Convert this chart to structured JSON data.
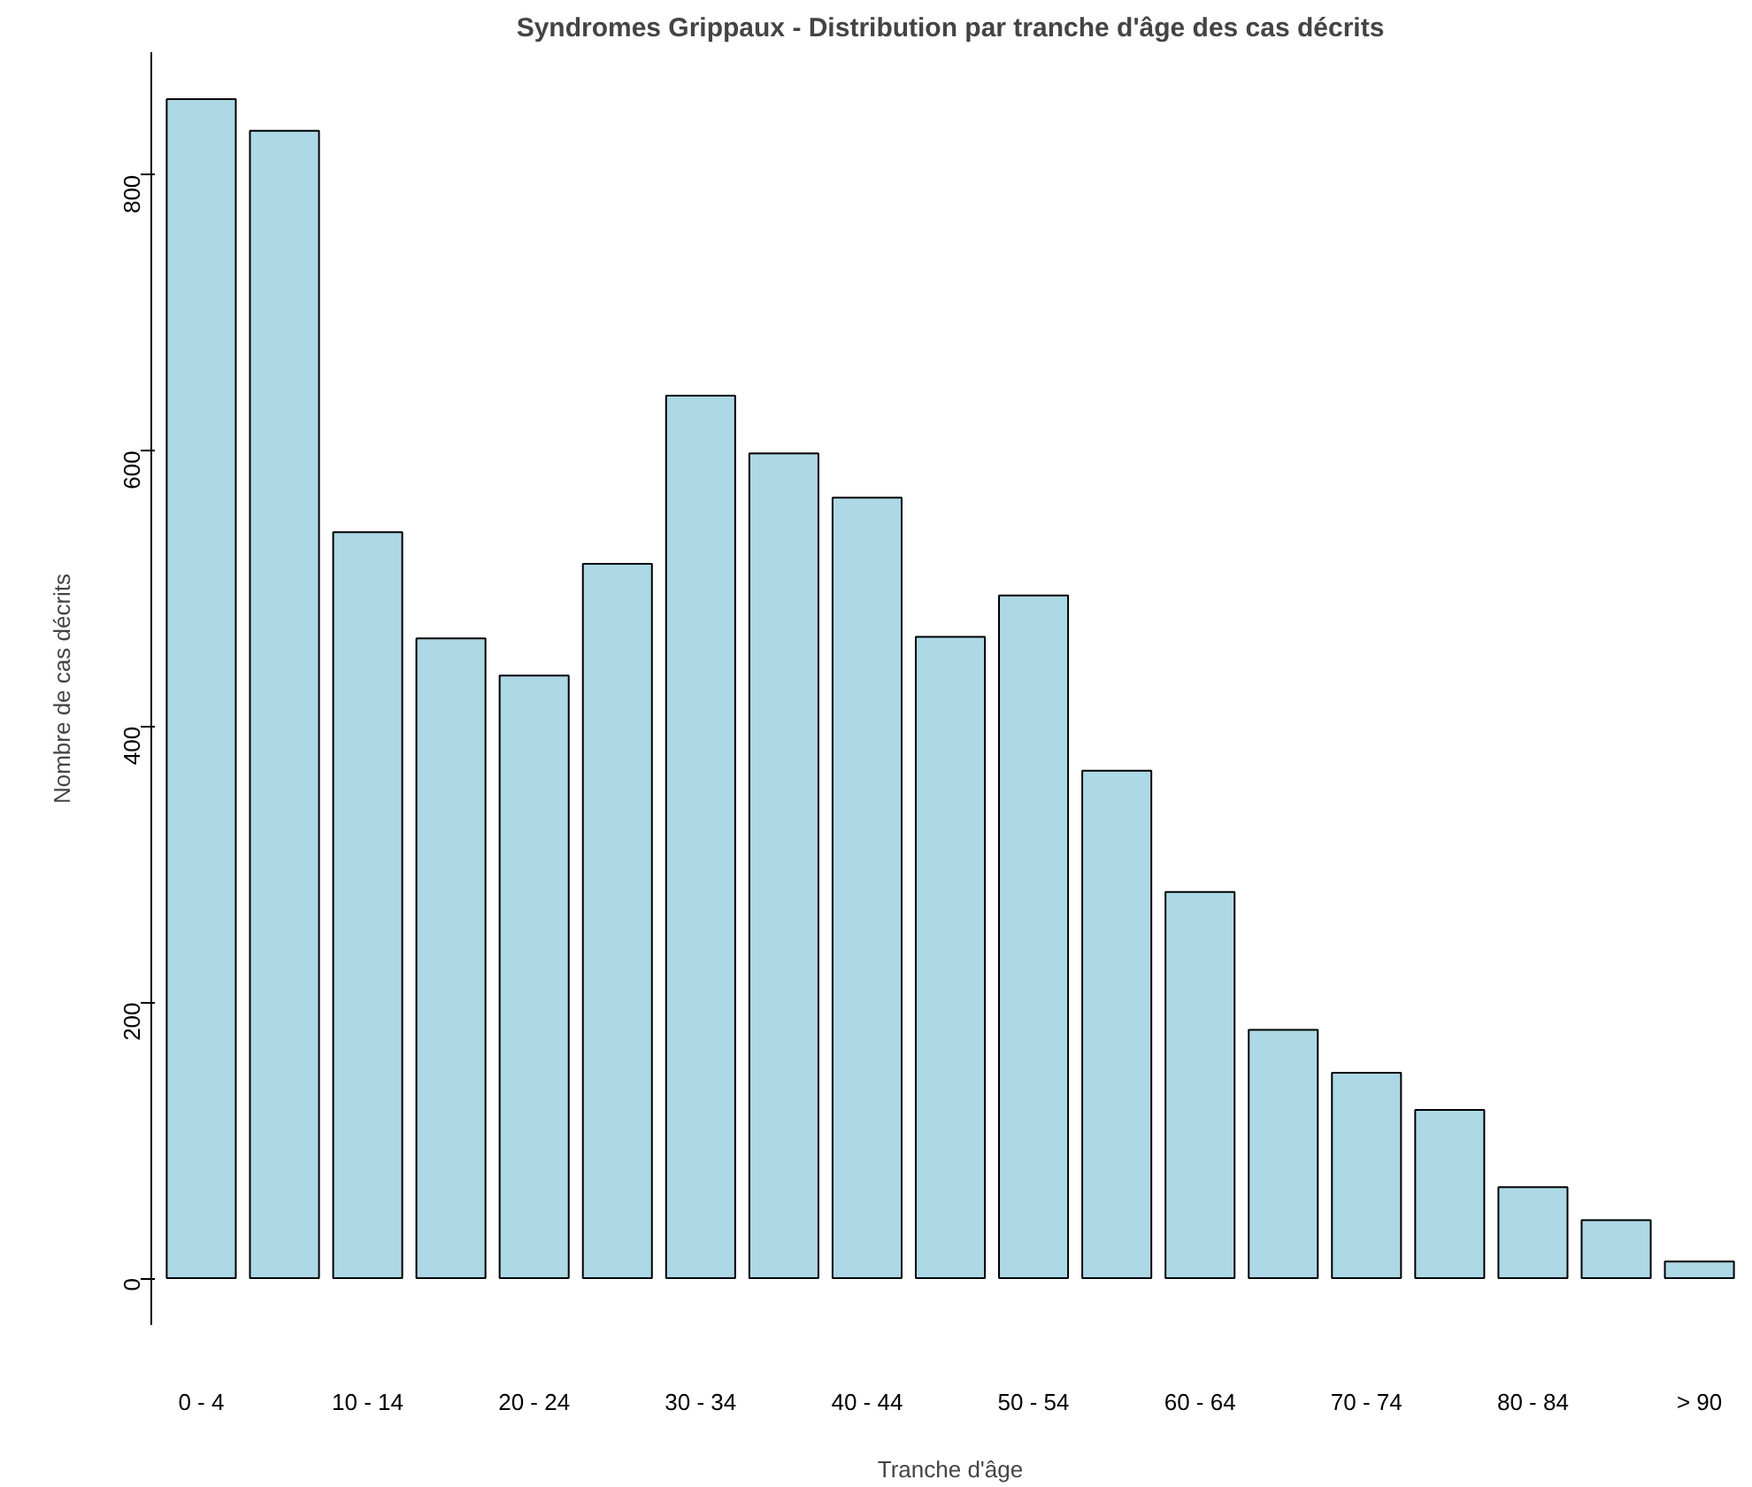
{
  "chart_data": {
    "type": "bar",
    "title": "Syndromes Grippaux - Distribution par tranche d'âge des cas décrits",
    "xlabel": "Tranche d'âge",
    "ylabel": "Nombre de cas décrits",
    "categories": [
      "0 - 4",
      null,
      "10 - 14",
      null,
      "20 - 24",
      null,
      "30 - 34",
      null,
      "40 - 44",
      null,
      "50 - 54",
      null,
      "60 - 64",
      null,
      "70 - 74",
      null,
      "80 - 84",
      null,
      "> 90"
    ],
    "values": [
      855,
      832,
      541,
      464,
      437,
      518,
      640,
      598,
      566,
      465,
      495,
      368,
      280,
      180,
      149,
      122,
      66,
      42,
      12
    ],
    "color": "#add8e6",
    "ylim": [
      -34,
      889
    ],
    "yticks": [
      0,
      200,
      400,
      600,
      800
    ],
    "grid": false
  }
}
